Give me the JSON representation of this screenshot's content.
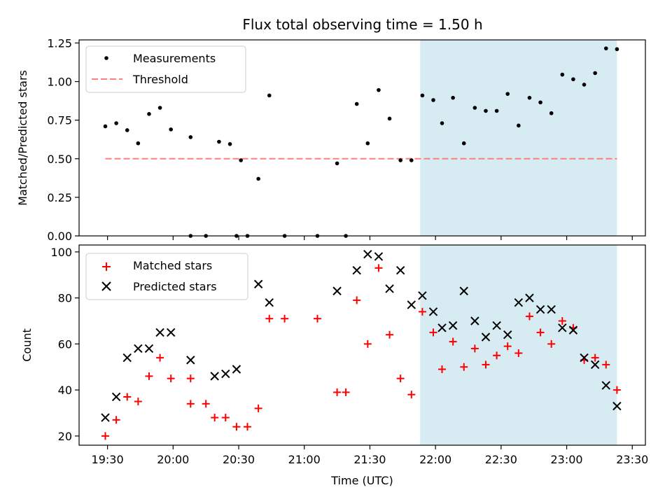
{
  "title": "Flux total observing time = 1.50 h",
  "xlabel": "Time (UTC)",
  "x_ticks": [
    "19:30",
    "20:00",
    "20:30",
    "21:00",
    "21:30",
    "22:00",
    "22:30",
    "23:00",
    "23:30"
  ],
  "shaded_region": {
    "start": "21:53",
    "end": "23:23",
    "color": "#add8e6"
  },
  "chart_data": [
    {
      "type": "scatter",
      "ylabel": "Matched/Predicted stars",
      "ylim": [
        0,
        1.27
      ],
      "y_ticks": [
        "0.00",
        "0.25",
        "0.50",
        "0.75",
        "1.00",
        "1.25"
      ],
      "legend_position": "top-left",
      "series": [
        {
          "name": "Measurements",
          "marker": "dot",
          "color": "#000000",
          "points": [
            [
              "19:29",
              0.71
            ],
            [
              "19:34",
              0.73
            ],
            [
              "19:39",
              0.685
            ],
            [
              "19:44",
              0.6
            ],
            [
              "19:49",
              0.79
            ],
            [
              "19:54",
              0.83
            ],
            [
              "19:59",
              0.69
            ],
            [
              "20:08",
              0.64
            ],
            [
              "20:08",
              0.0
            ],
            [
              "20:15",
              0.0
            ],
            [
              "20:21",
              0.61
            ],
            [
              "20:26",
              0.595
            ],
            [
              "20:29",
              0.0
            ],
            [
              "20:31",
              0.49
            ],
            [
              "20:34",
              0.0
            ],
            [
              "20:39",
              0.37
            ],
            [
              "20:44",
              0.91
            ],
            [
              "20:51",
              0.0
            ],
            [
              "21:06",
              0.0
            ],
            [
              "21:15",
              0.47
            ],
            [
              "21:19",
              0.0
            ],
            [
              "21:24",
              0.855
            ],
            [
              "21:29",
              0.6
            ],
            [
              "21:34",
              0.945
            ],
            [
              "21:39",
              0.76
            ],
            [
              "21:44",
              0.49
            ],
            [
              "21:49",
              0.49
            ],
            [
              "21:54",
              0.91
            ],
            [
              "21:59",
              0.88
            ],
            [
              "22:03",
              0.73
            ],
            [
              "22:08",
              0.895
            ],
            [
              "22:13",
              0.6
            ],
            [
              "22:18",
              0.83
            ],
            [
              "22:23",
              0.81
            ],
            [
              "22:28",
              0.81
            ],
            [
              "22:33",
              0.92
            ],
            [
              "22:38",
              0.715
            ],
            [
              "22:43",
              0.895
            ],
            [
              "22:48",
              0.865
            ],
            [
              "22:53",
              0.795
            ],
            [
              "22:58",
              1.045
            ],
            [
              "23:03",
              1.015
            ],
            [
              "23:08",
              0.98
            ],
            [
              "23:13",
              1.055
            ],
            [
              "23:18",
              1.215
            ],
            [
              "23:23",
              1.21
            ]
          ]
        },
        {
          "name": "Threshold",
          "marker": "dashed-line",
          "color": "#ff7f7f",
          "points": [
            [
              "19:29",
              0.5
            ],
            [
              "23:23",
              0.5
            ]
          ]
        }
      ]
    },
    {
      "type": "scatter",
      "ylabel": "Count",
      "ylim": [
        16,
        103
      ],
      "y_ticks": [
        "20",
        "40",
        "60",
        "80",
        "100"
      ],
      "legend_position": "top-left",
      "series": [
        {
          "name": "Matched stars",
          "marker": "plus",
          "color": "#ff0000",
          "points": [
            [
              "19:29",
              20
            ],
            [
              "19:34",
              27
            ],
            [
              "19:39",
              37
            ],
            [
              "19:44",
              35
            ],
            [
              "19:49",
              46
            ],
            [
              "19:54",
              54
            ],
            [
              "19:59",
              45
            ],
            [
              "20:08",
              45
            ],
            [
              "20:08",
              34
            ],
            [
              "20:15",
              34
            ],
            [
              "20:19",
              28
            ],
            [
              "20:24",
              28
            ],
            [
              "20:29",
              24
            ],
            [
              "20:34",
              24
            ],
            [
              "20:39",
              32
            ],
            [
              "20:44",
              71
            ],
            [
              "20:51",
              71
            ],
            [
              "21:06",
              71
            ],
            [
              "21:15",
              39
            ],
            [
              "21:19",
              39
            ],
            [
              "21:24",
              79
            ],
            [
              "21:29",
              60
            ],
            [
              "21:34",
              93
            ],
            [
              "21:39",
              64
            ],
            [
              "21:44",
              45
            ],
            [
              "21:49",
              38
            ],
            [
              "21:54",
              74
            ],
            [
              "21:59",
              65
            ],
            [
              "22:03",
              49
            ],
            [
              "22:08",
              61
            ],
            [
              "22:13",
              50
            ],
            [
              "22:18",
              58
            ],
            [
              "22:23",
              51
            ],
            [
              "22:28",
              55
            ],
            [
              "22:33",
              59
            ],
            [
              "22:38",
              56
            ],
            [
              "22:43",
              72
            ],
            [
              "22:48",
              65
            ],
            [
              "22:53",
              60
            ],
            [
              "22:58",
              70
            ],
            [
              "23:03",
              67
            ],
            [
              "23:08",
              53
            ],
            [
              "23:13",
              54
            ],
            [
              "23:18",
              51
            ],
            [
              "23:23",
              40
            ]
          ]
        },
        {
          "name": "Predicted stars",
          "marker": "x",
          "color": "#000000",
          "points": [
            [
              "19:29",
              28
            ],
            [
              "19:34",
              37
            ],
            [
              "19:39",
              54
            ],
            [
              "19:44",
              58
            ],
            [
              "19:49",
              58
            ],
            [
              "19:54",
              65
            ],
            [
              "19:59",
              65
            ],
            [
              "20:08",
              53
            ],
            [
              "20:19",
              46
            ],
            [
              "20:24",
              47
            ],
            [
              "20:29",
              49
            ],
            [
              "20:39",
              86
            ],
            [
              "20:44",
              78
            ],
            [
              "21:15",
              83
            ],
            [
              "21:24",
              92
            ],
            [
              "21:29",
              99
            ],
            [
              "21:34",
              98
            ],
            [
              "21:39",
              84
            ],
            [
              "21:44",
              92
            ],
            [
              "21:49",
              77
            ],
            [
              "21:54",
              81
            ],
            [
              "21:59",
              74
            ],
            [
              "22:03",
              67
            ],
            [
              "22:08",
              68
            ],
            [
              "22:13",
              83
            ],
            [
              "22:18",
              70
            ],
            [
              "22:23",
              63
            ],
            [
              "22:28",
              68
            ],
            [
              "22:33",
              64
            ],
            [
              "22:38",
              78
            ],
            [
              "22:43",
              80
            ],
            [
              "22:48",
              75
            ],
            [
              "22:53",
              75
            ],
            [
              "22:58",
              67
            ],
            [
              "23:03",
              66
            ],
            [
              "23:08",
              54
            ],
            [
              "23:13",
              51
            ],
            [
              "23:18",
              42
            ],
            [
              "23:23",
              33
            ]
          ]
        }
      ]
    }
  ]
}
